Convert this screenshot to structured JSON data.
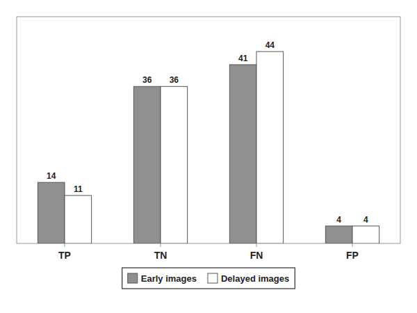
{
  "chart_data": {
    "type": "bar",
    "categories": [
      "TP",
      "TN",
      "FN",
      "FP"
    ],
    "series": [
      {
        "name": "Early images",
        "color": "#909090",
        "values": [
          14,
          36,
          41,
          4
        ]
      },
      {
        "name": "Delayed images",
        "color": "#ffffff",
        "values": [
          11,
          36,
          44,
          4
        ]
      }
    ],
    "ylim": [
      0,
      52
    ],
    "grid": false,
    "legend": "bottom",
    "data_labels": true,
    "tick_labels": "x"
  }
}
